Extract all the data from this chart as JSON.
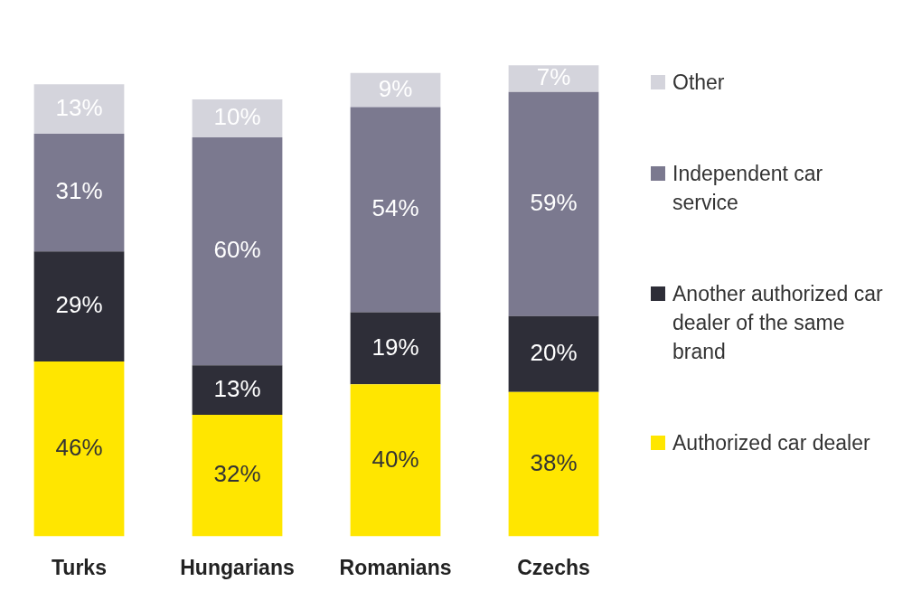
{
  "chart_data": {
    "type": "bar",
    "stacked": true,
    "categories": [
      "Turks",
      "Hungarians",
      "Romanians",
      "Czechs"
    ],
    "series": [
      {
        "name": "Authorized car dealer",
        "color": "#ffe600",
        "values": [
          46,
          32,
          40,
          38
        ],
        "value_labels": [
          "46%",
          "32%",
          "40%",
          "38%"
        ]
      },
      {
        "name": "Another authorized car dealer of the same brand",
        "color": "#2e2e38",
        "values": [
          29,
          13,
          19,
          20
        ],
        "value_labels": [
          "29%",
          "13%",
          "19%",
          "20%"
        ]
      },
      {
        "name": "Independent car service",
        "color": "#7b798f",
        "values": [
          31,
          60,
          54,
          59
        ],
        "value_labels": [
          "31%",
          "60%",
          "54%",
          "59%"
        ]
      },
      {
        "name": "Other",
        "color": "#d4d4dc",
        "values": [
          13,
          10,
          9,
          7
        ],
        "value_labels": [
          "13%",
          "10%",
          "9%",
          "7%"
        ]
      }
    ],
    "tick_labels": "x",
    "legend": "right",
    "grid": false
  }
}
